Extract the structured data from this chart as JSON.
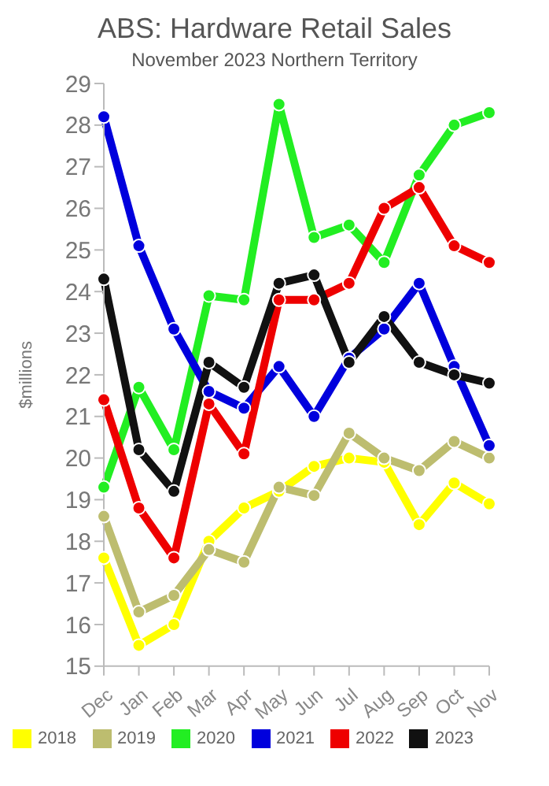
{
  "chart_data": {
    "type": "line",
    "title": "ABS: Hardware Retail Sales",
    "subtitle": "November 2023 Northern Territory",
    "ylabel": "$millions",
    "categories": [
      "Dec",
      "Jan",
      "Feb",
      "Mar",
      "Apr",
      "May",
      "Jun",
      "Jul",
      "Aug",
      "Sep",
      "Oct",
      "Nov"
    ],
    "series": [
      {
        "name": "2018",
        "color": "#ffff00",
        "values": [
          17.6,
          15.5,
          16.0,
          18.0,
          18.8,
          19.2,
          19.8,
          20.0,
          19.9,
          18.4,
          19.4,
          18.9
        ]
      },
      {
        "name": "2019",
        "color": "#bdbd6f",
        "values": [
          18.6,
          16.3,
          16.7,
          17.8,
          17.5,
          19.3,
          19.1,
          20.6,
          20.0,
          19.7,
          20.4,
          20.0
        ]
      },
      {
        "name": "2020",
        "color": "#22ee22",
        "values": [
          19.3,
          21.7,
          20.2,
          23.9,
          23.8,
          28.5,
          25.3,
          25.6,
          24.7,
          26.8,
          28.0,
          28.3
        ]
      },
      {
        "name": "2021",
        "color": "#0000dd",
        "values": [
          28.2,
          25.1,
          23.1,
          21.6,
          21.2,
          22.2,
          21.0,
          22.4,
          23.1,
          24.2,
          22.2,
          20.3
        ]
      },
      {
        "name": "2022",
        "color": "#ee0000",
        "values": [
          21.4,
          18.8,
          17.6,
          21.3,
          20.1,
          23.8,
          23.8,
          24.2,
          26.0,
          26.5,
          25.1,
          24.7
        ]
      },
      {
        "name": "2023",
        "color": "#111111",
        "values": [
          24.3,
          20.2,
          19.2,
          22.3,
          21.7,
          24.2,
          24.4,
          22.3,
          23.4,
          22.3,
          22.0,
          21.8
        ]
      }
    ],
    "ylim": [
      15,
      29
    ],
    "yticks": [
      15,
      16,
      17,
      18,
      19,
      20,
      21,
      22,
      23,
      24,
      25,
      26,
      27,
      28,
      29
    ],
    "grid": false,
    "legend": "bottom",
    "marker": "circle",
    "line_style": "solid"
  }
}
